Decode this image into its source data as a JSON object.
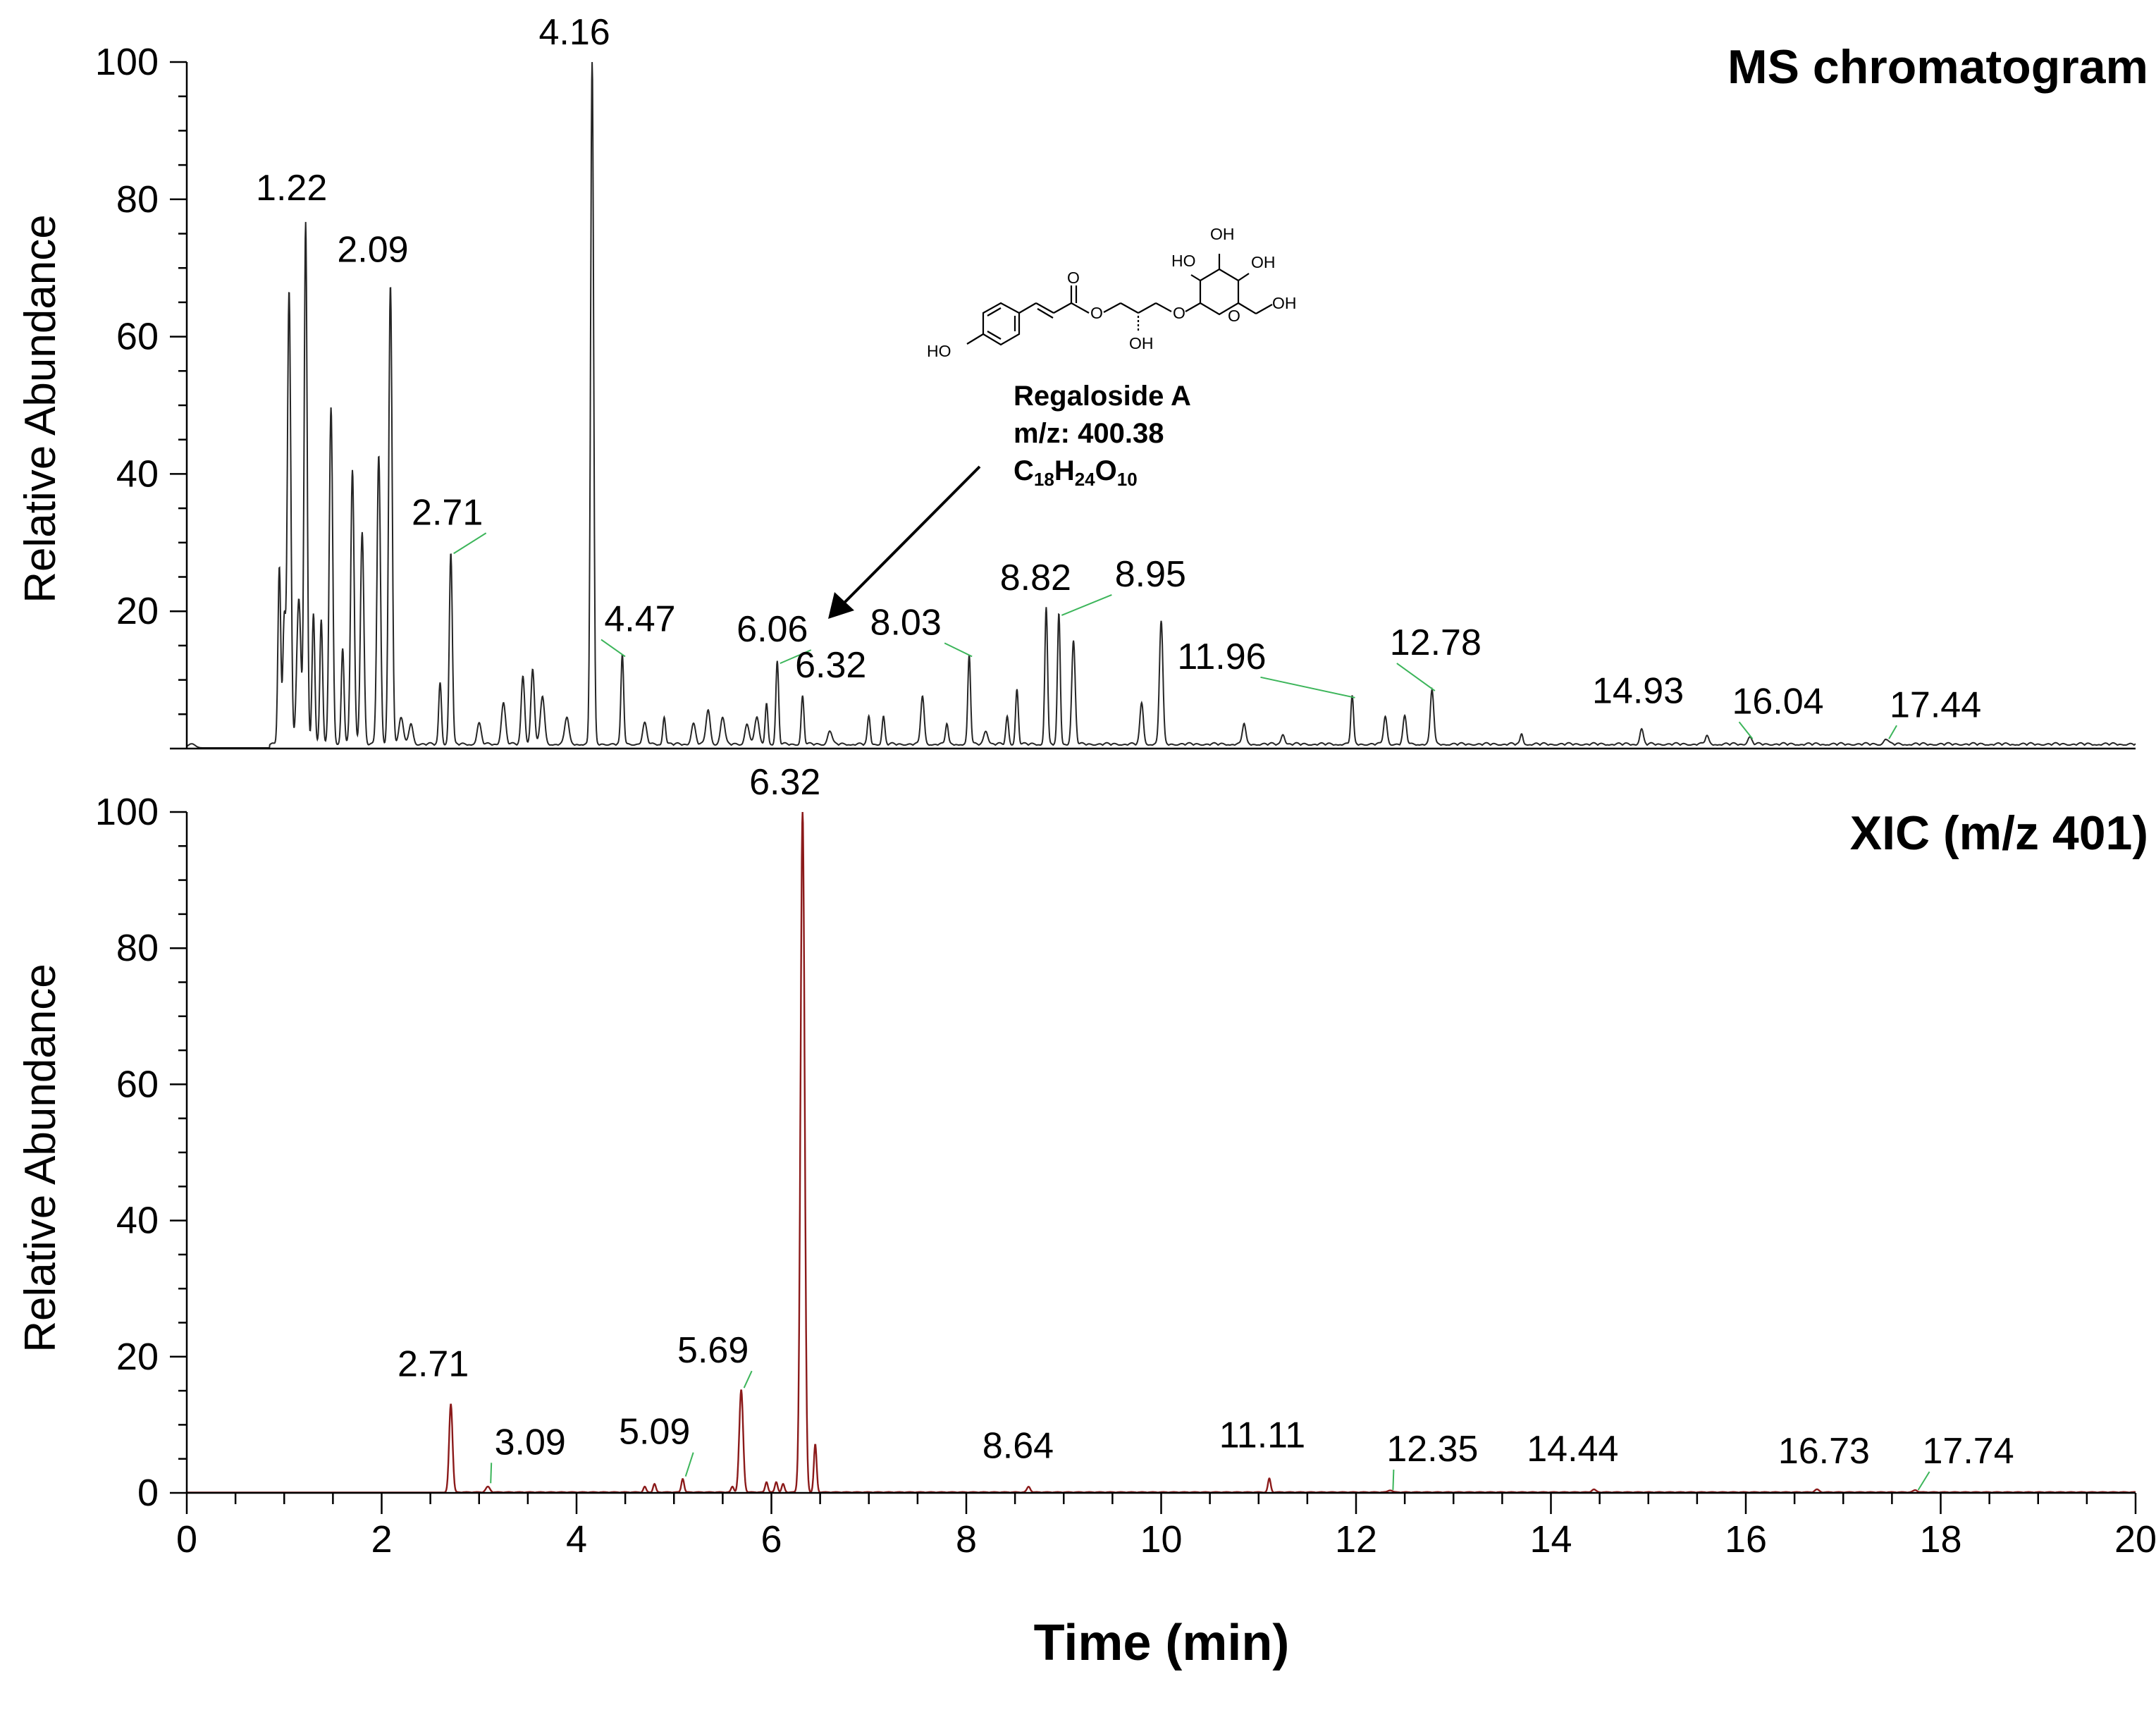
{
  "chart_data": [
    {
      "type": "line",
      "title": "MS chromatogram",
      "xlabel": "Time (min)",
      "ylabel": "Relative Abundance",
      "xlim": [
        0,
        20
      ],
      "ylim": [
        0,
        100
      ],
      "x_ticks": [
        "0",
        "2",
        "4",
        "6",
        "8",
        "10",
        "12",
        "14",
        "16",
        "18",
        "20"
      ],
      "y_ticks": [
        "0",
        "20",
        "40",
        "60",
        "80",
        "100"
      ],
      "y_tick_labels_shown": [
        "20",
        "40",
        "60",
        "80",
        "100"
      ],
      "baseline": 0.5,
      "peaks": [
        {
          "x": 0.95,
          "y": 26,
          "w": 0.02
        },
        {
          "x": 1.0,
          "y": 18,
          "w": 0.02
        },
        {
          "x": 1.05,
          "y": 66,
          "w": 0.025
        },
        {
          "x": 1.15,
          "y": 21,
          "w": 0.03
        },
        {
          "x": 1.22,
          "y": 76,
          "w": 0.022
        },
        {
          "x": 1.3,
          "y": 19,
          "w": 0.02
        },
        {
          "x": 1.38,
          "y": 18,
          "w": 0.02
        },
        {
          "x": 1.48,
          "y": 49,
          "w": 0.025
        },
        {
          "x": 1.6,
          "y": 14,
          "w": 0.02
        },
        {
          "x": 1.7,
          "y": 40,
          "w": 0.025
        },
        {
          "x": 1.8,
          "y": 31,
          "w": 0.025
        },
        {
          "x": 1.97,
          "y": 42,
          "w": 0.025
        },
        {
          "x": 2.09,
          "y": 67,
          "w": 0.025
        },
        {
          "x": 2.2,
          "y": 4,
          "w": 0.03
        },
        {
          "x": 2.3,
          "y": 3,
          "w": 0.03
        },
        {
          "x": 2.6,
          "y": 9,
          "w": 0.02
        },
        {
          "x": 2.71,
          "y": 28,
          "w": 0.022
        },
        {
          "x": 3.0,
          "y": 3,
          "w": 0.03
        },
        {
          "x": 3.25,
          "y": 6,
          "w": 0.03
        },
        {
          "x": 3.45,
          "y": 10,
          "w": 0.025
        },
        {
          "x": 3.55,
          "y": 11,
          "w": 0.025
        },
        {
          "x": 3.65,
          "y": 7,
          "w": 0.03
        },
        {
          "x": 3.9,
          "y": 4,
          "w": 0.03
        },
        {
          "x": 4.16,
          "y": 100,
          "w": 0.022
        },
        {
          "x": 4.47,
          "y": 13,
          "w": 0.02
        },
        {
          "x": 4.7,
          "y": 3,
          "w": 0.03
        },
        {
          "x": 4.9,
          "y": 4,
          "w": 0.02
        },
        {
          "x": 5.2,
          "y": 3,
          "w": 0.03
        },
        {
          "x": 5.35,
          "y": 5,
          "w": 0.03
        },
        {
          "x": 5.5,
          "y": 4,
          "w": 0.03
        },
        {
          "x": 5.75,
          "y": 3,
          "w": 0.03
        },
        {
          "x": 5.85,
          "y": 4,
          "w": 0.03
        },
        {
          "x": 5.95,
          "y": 6,
          "w": 0.02
        },
        {
          "x": 6.06,
          "y": 12,
          "w": 0.02
        },
        {
          "x": 6.32,
          "y": 7,
          "w": 0.02
        },
        {
          "x": 6.6,
          "y": 2,
          "w": 0.03
        },
        {
          "x": 7.0,
          "y": 4,
          "w": 0.02
        },
        {
          "x": 7.15,
          "y": 4,
          "w": 0.02
        },
        {
          "x": 7.55,
          "y": 7,
          "w": 0.025
        },
        {
          "x": 7.8,
          "y": 3,
          "w": 0.02
        },
        {
          "x": 8.03,
          "y": 13,
          "w": 0.02
        },
        {
          "x": 8.2,
          "y": 2,
          "w": 0.03
        },
        {
          "x": 8.42,
          "y": 4,
          "w": 0.02
        },
        {
          "x": 8.52,
          "y": 8,
          "w": 0.02
        },
        {
          "x": 8.82,
          "y": 20,
          "w": 0.02
        },
        {
          "x": 8.95,
          "y": 19,
          "w": 0.02
        },
        {
          "x": 9.1,
          "y": 15,
          "w": 0.025
        },
        {
          "x": 9.8,
          "y": 6,
          "w": 0.025
        },
        {
          "x": 10.0,
          "y": 18,
          "w": 0.025
        },
        {
          "x": 10.85,
          "y": 3,
          "w": 0.025
        },
        {
          "x": 11.25,
          "y": 1.5,
          "w": 0.025
        },
        {
          "x": 11.96,
          "y": 7,
          "w": 0.02
        },
        {
          "x": 12.3,
          "y": 4,
          "w": 0.025
        },
        {
          "x": 12.5,
          "y": 4,
          "w": 0.025
        },
        {
          "x": 12.78,
          "y": 8,
          "w": 0.025
        },
        {
          "x": 13.7,
          "y": 1.5,
          "w": 0.02
        },
        {
          "x": 14.93,
          "y": 2.2,
          "w": 0.025
        },
        {
          "x": 15.6,
          "y": 1.2,
          "w": 0.025
        },
        {
          "x": 16.04,
          "y": 1,
          "w": 0.03
        },
        {
          "x": 17.44,
          "y": 0.8,
          "w": 0.03
        }
      ],
      "labels": [
        {
          "text": "1.22",
          "x": 1.22,
          "y": 76
        },
        {
          "text": "2.09",
          "x": 2.09,
          "y": 67
        },
        {
          "text": "2.71",
          "x": 2.71,
          "y": 28
        },
        {
          "text": "4.16",
          "x": 4.16,
          "y": 100
        },
        {
          "text": "4.47",
          "x": 4.47,
          "y": 13
        },
        {
          "text": "6.06",
          "x": 6.06,
          "y": 12
        },
        {
          "text": "6.32",
          "x": 6.32,
          "y": 7
        },
        {
          "text": "8.03",
          "x": 8.03,
          "y": 13
        },
        {
          "text": "8.82",
          "x": 8.82,
          "y": 20
        },
        {
          "text": "8.95",
          "x": 8.95,
          "y": 19
        },
        {
          "text": "11.96",
          "x": 11.96,
          "y": 7
        },
        {
          "text": "12.78",
          "x": 12.78,
          "y": 8
        },
        {
          "text": "14.93",
          "x": 14.93,
          "y": 2
        },
        {
          "text": "16.04",
          "x": 16.04,
          "y": 1
        },
        {
          "text": "17.44",
          "x": 17.44,
          "y": 1
        }
      ]
    },
    {
      "type": "line",
      "title": "XIC (m/z 401)",
      "xlabel": "Time (min)",
      "ylabel": "Relative Abundance",
      "xlim": [
        0,
        20
      ],
      "ylim": [
        0,
        100
      ],
      "x_ticks": [
        "0",
        "2",
        "4",
        "6",
        "8",
        "10",
        "12",
        "14",
        "16",
        "18",
        "20"
      ],
      "y_ticks": [
        "0",
        "20",
        "40",
        "60",
        "80",
        "100"
      ],
      "y_tick_labels_shown": [
        "0",
        "20",
        "40",
        "60",
        "80",
        "100"
      ],
      "baseline": 0,
      "peaks": [
        {
          "x": 2.71,
          "y": 13,
          "w": 0.025
        },
        {
          "x": 3.09,
          "y": 0.8,
          "w": 0.03
        },
        {
          "x": 4.7,
          "y": 0.8,
          "w": 0.02
        },
        {
          "x": 4.8,
          "y": 1.2,
          "w": 0.02
        },
        {
          "x": 5.09,
          "y": 2,
          "w": 0.02
        },
        {
          "x": 5.6,
          "y": 0.8,
          "w": 0.02
        },
        {
          "x": 5.69,
          "y": 15,
          "w": 0.028
        },
        {
          "x": 5.95,
          "y": 1.5,
          "w": 0.02
        },
        {
          "x": 6.05,
          "y": 1.5,
          "w": 0.02
        },
        {
          "x": 6.12,
          "y": 1.2,
          "w": 0.02
        },
        {
          "x": 6.32,
          "y": 100,
          "w": 0.03
        },
        {
          "x": 6.45,
          "y": 7,
          "w": 0.02
        },
        {
          "x": 8.64,
          "y": 0.8,
          "w": 0.025
        },
        {
          "x": 11.11,
          "y": 2,
          "w": 0.02
        },
        {
          "x": 12.35,
          "y": 0.3,
          "w": 0.03
        },
        {
          "x": 14.44,
          "y": 0.4,
          "w": 0.03
        },
        {
          "x": 16.73,
          "y": 0.4,
          "w": 0.03
        },
        {
          "x": 17.74,
          "y": 0.3,
          "w": 0.03
        }
      ],
      "labels": [
        {
          "text": "2.71",
          "x": 2.71,
          "y": 13
        },
        {
          "text": "3.09",
          "x": 3.09,
          "y": 1
        },
        {
          "text": "5.09",
          "x": 5.09,
          "y": 2
        },
        {
          "text": "5.69",
          "x": 5.69,
          "y": 15
        },
        {
          "text": "6.32",
          "x": 6.32,
          "y": 100
        },
        {
          "text": "8.64",
          "x": 8.64,
          "y": 1
        },
        {
          "text": "11.11",
          "x": 11.11,
          "y": 2
        },
        {
          "text": "12.35",
          "x": 12.35,
          "y": 0
        },
        {
          "text": "14.44",
          "x": 14.44,
          "y": 0
        },
        {
          "text": "16.73",
          "x": 16.73,
          "y": 0
        },
        {
          "text": "17.74",
          "x": 17.74,
          "y": 0
        }
      ]
    }
  ],
  "annotation": {
    "compound_name": "Regaloside A",
    "mz": "m/z: 400.38",
    "formula_parts": [
      {
        "t": "C",
        "sub": false
      },
      {
        "t": "18",
        "sub": true
      },
      {
        "t": "H",
        "sub": false
      },
      {
        "t": "24",
        "sub": true
      },
      {
        "t": "O",
        "sub": false
      },
      {
        "t": "10",
        "sub": true
      }
    ],
    "atoms": {
      "ho": "HO",
      "o": "O",
      "oh": "OH"
    }
  },
  "colors": {
    "ms_trace": "#262626",
    "xic_trace": "#8b1a1a",
    "leader": "#3cb55a"
  }
}
